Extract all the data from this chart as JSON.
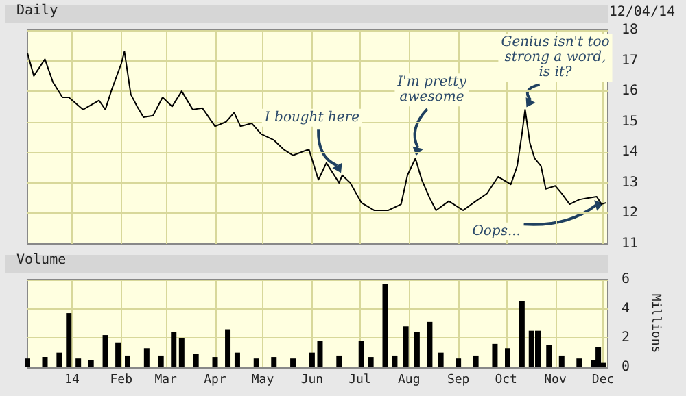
{
  "chart_data": [
    {
      "type": "line",
      "title": "Daily",
      "subtitle": "12/04/14",
      "color": "#000000",
      "x": [
        "2013-12-04",
        "2013-12-08",
        "2013-12-15",
        "2013-12-20",
        "2013-12-26",
        "2013-12-30",
        "2014-01-08",
        "2014-01-18",
        "2014-01-22",
        "2014-01-26",
        "2014-02-01",
        "2014-02-03",
        "2014-02-07",
        "2014-02-11",
        "2014-02-15",
        "2014-02-21",
        "2014-02-27",
        "2014-03-05",
        "2014-03-11",
        "2014-03-18",
        "2014-03-24",
        "2014-04-01",
        "2014-04-08",
        "2014-04-13",
        "2014-04-17",
        "2014-04-24",
        "2014-04-30",
        "2014-05-08",
        "2014-05-14",
        "2014-05-20",
        "2014-05-30",
        "2014-06-05",
        "2014-06-10",
        "2014-06-18",
        "2014-06-20",
        "2014-06-25",
        "2014-07-02",
        "2014-07-10",
        "2014-07-19",
        "2014-07-27",
        "2014-07-31",
        "2014-08-05",
        "2014-08-09",
        "2014-08-14",
        "2014-08-18",
        "2014-08-26",
        "2014-09-04",
        "2014-09-12",
        "2014-09-19",
        "2014-09-26",
        "2014-10-04",
        "2014-10-08",
        "2014-10-11",
        "2014-10-13",
        "2014-10-16",
        "2014-10-19",
        "2014-10-23",
        "2014-10-26",
        "2014-11-01",
        "2014-11-05",
        "2014-11-10",
        "2014-11-16",
        "2014-11-21",
        "2014-11-27",
        "2014-11-30",
        "2014-12-03"
      ],
      "values": [
        17.25,
        16.5,
        17.05,
        16.3,
        15.8,
        15.8,
        15.4,
        15.7,
        15.4,
        16.05,
        16.9,
        17.3,
        15.9,
        15.5,
        15.15,
        15.2,
        15.8,
        15.5,
        16.0,
        15.4,
        15.45,
        14.85,
        15.0,
        15.3,
        14.85,
        14.95,
        14.6,
        14.4,
        14.1,
        13.9,
        14.1,
        13.1,
        13.65,
        13.0,
        13.25,
        13.0,
        12.35,
        12.1,
        12.1,
        12.3,
        13.25,
        13.8,
        13.1,
        12.5,
        12.1,
        12.4,
        12.1,
        12.4,
        12.65,
        13.2,
        12.95,
        13.55,
        14.6,
        15.4,
        14.3,
        13.8,
        13.55,
        12.8,
        12.9,
        12.65,
        12.3,
        12.45,
        12.5,
        12.55,
        12.3,
        12.35
      ],
      "xlim": [
        "2013-12-04",
        "2014-12-04"
      ],
      "xticks": [
        "2014-01-01",
        "2014-02-01",
        "2014-03-01",
        "2014-04-01",
        "2014-05-01",
        "2014-06-01",
        "2014-07-01",
        "2014-08-01",
        "2014-09-01",
        "2014-10-01",
        "2014-11-01",
        "2014-12-01"
      ],
      "ylim": [
        11,
        18
      ],
      "yticks": [
        11,
        12,
        13,
        14,
        15,
        16,
        17,
        18
      ],
      "tick_labels": "y",
      "grid": true,
      "annotations": [
        {
          "text": "I bought here",
          "x": "2014-06-20",
          "y": 13.25
        },
        {
          "text": "I'm pretty awesome",
          "x": "2014-08-05",
          "y": 13.8
        },
        {
          "text": "Genius isn't too strong a word, is it?",
          "x": "2014-10-13",
          "y": 15.4
        },
        {
          "text": "Oops...",
          "x": "2014-12-03",
          "y": 12.35
        }
      ]
    },
    {
      "type": "bar",
      "title": "Volume",
      "ylabel": "Millions",
      "color": "#000000",
      "x": [
        "2013-12-04",
        "2013-12-15",
        "2013-12-24",
        "2013-12-30",
        "2014-01-05",
        "2014-01-13",
        "2014-01-22",
        "2014-01-30",
        "2014-02-05",
        "2014-02-17",
        "2014-02-26",
        "2014-03-06",
        "2014-03-11",
        "2014-03-20",
        "2014-04-01",
        "2014-04-09",
        "2014-04-15",
        "2014-04-27",
        "2014-05-08",
        "2014-05-20",
        "2014-06-01",
        "2014-06-06",
        "2014-06-18",
        "2014-07-02",
        "2014-07-08",
        "2014-07-17",
        "2014-07-23",
        "2014-07-30",
        "2014-08-06",
        "2014-08-14",
        "2014-08-21",
        "2014-09-01",
        "2014-09-12",
        "2014-09-24",
        "2014-10-02",
        "2014-10-11",
        "2014-10-17",
        "2014-10-21",
        "2014-10-28",
        "2014-11-05",
        "2014-11-16",
        "2014-11-25",
        "2014-11-28",
        "2014-12-01"
      ],
      "values": [
        0.6,
        0.7,
        1.0,
        3.7,
        0.6,
        0.5,
        2.2,
        1.7,
        0.8,
        1.3,
        0.8,
        2.4,
        2.0,
        0.9,
        0.7,
        2.6,
        1.0,
        0.6,
        0.7,
        0.6,
        1.0,
        1.8,
        0.8,
        1.8,
        0.7,
        5.7,
        0.8,
        2.8,
        2.4,
        3.1,
        1.0,
        0.6,
        0.8,
        1.6,
        1.3,
        4.5,
        2.5,
        2.5,
        1.5,
        0.8,
        0.6,
        0.5,
        1.4,
        0.3
      ],
      "xlim": [
        "2013-12-04",
        "2014-12-04"
      ],
      "xticks": [
        {
          "value": "2014-01-01",
          "label": "14"
        },
        {
          "value": "2014-02-01",
          "label": "Feb"
        },
        {
          "value": "2014-03-01",
          "label": "Mar"
        },
        {
          "value": "2014-04-01",
          "label": "Apr"
        },
        {
          "value": "2014-05-01",
          "label": "May"
        },
        {
          "value": "2014-06-01",
          "label": "Jun"
        },
        {
          "value": "2014-07-01",
          "label": "Jul"
        },
        {
          "value": "2014-08-01",
          "label": "Aug"
        },
        {
          "value": "2014-09-01",
          "label": "Sep"
        },
        {
          "value": "2014-10-01",
          "label": "Oct"
        },
        {
          "value": "2014-11-01",
          "label": "Nov"
        },
        {
          "value": "2014-12-01",
          "label": "Dec"
        }
      ],
      "ylim": [
        0,
        6
      ],
      "yticks": [
        0,
        2,
        4,
        6
      ],
      "grid": true
    }
  ]
}
